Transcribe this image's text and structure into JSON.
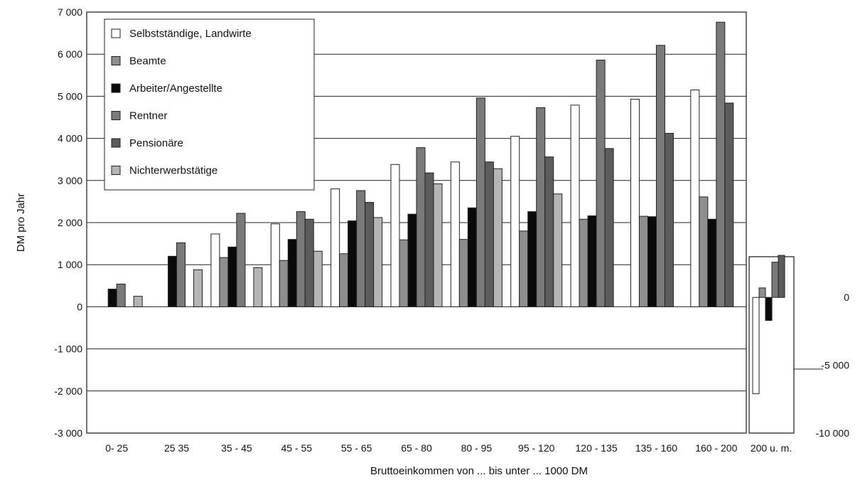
{
  "chart_data": {
    "type": "bar",
    "xlabel": "Bruttoeinkommen von ... bis unter ... 1000 DM",
    "ylabel": "DM pro Jahr",
    "ylim": [
      -3000,
      7000
    ],
    "y_ticks": [
      "7 000",
      "6 000",
      "5 000",
      "4 000",
      "3 000",
      "2 000",
      "1 000",
      "0",
      "-1 000",
      "-2 000",
      "-3 000"
    ],
    "y_tick_values": [
      7000,
      6000,
      5000,
      4000,
      3000,
      2000,
      1000,
      0,
      -1000,
      -2000,
      -3000
    ],
    "grid": true,
    "legend_position": "top-left",
    "categories": [
      "0- 25",
      "25 35",
      "35 - 45",
      "45 - 55",
      "55 - 65",
      "65 - 80",
      "80 - 95",
      "95 - 120",
      "120 - 135",
      "135 - 160",
      "160 - 200"
    ],
    "series": [
      {
        "name": "Selbstständige, Landwirte",
        "color": "#ffffff",
        "values": [
          0,
          0,
          1730,
          1970,
          2800,
          3380,
          3440,
          4050,
          4790,
          4930,
          5150
        ]
      },
      {
        "name": "Beamte",
        "color": "#8e8e8e",
        "values": [
          0,
          0,
          1170,
          1100,
          1260,
          1590,
          1600,
          1800,
          2080,
          2150,
          2610
        ]
      },
      {
        "name": "Arbeiter/Angestellte",
        "color": "#0a0a0a",
        "values": [
          420,
          1200,
          1420,
          1600,
          2040,
          2200,
          2350,
          2260,
          2160,
          2140,
          2080
        ]
      },
      {
        "name": "Rentner",
        "color": "#7a7a7a",
        "values": [
          540,
          1520,
          2220,
          2260,
          2760,
          3780,
          4960,
          4730,
          5860,
          6210,
          6760
        ]
      },
      {
        "name": "Pensionäre",
        "color": "#5c5c5c",
        "values": [
          0,
          0,
          0,
          2080,
          2480,
          3180,
          3440,
          3560,
          3760,
          4120,
          4840
        ]
      },
      {
        "name": "Nichterwerbstätige",
        "color": "#b5b5b5",
        "values": [
          250,
          880,
          930,
          1320,
          2120,
          2920,
          3280,
          2680,
          0,
          0,
          0
        ]
      }
    ],
    "inset": {
      "category": "200 u. m.",
      "ylim": [
        -10000,
        3000
      ],
      "y_ticks": [
        "0",
        "-5 000",
        "-10 000"
      ],
      "y_tick_values": [
        0,
        -5000,
        -10000
      ],
      "values": [
        -7100,
        700,
        -1700,
        2600,
        3100,
        0
      ]
    }
  }
}
